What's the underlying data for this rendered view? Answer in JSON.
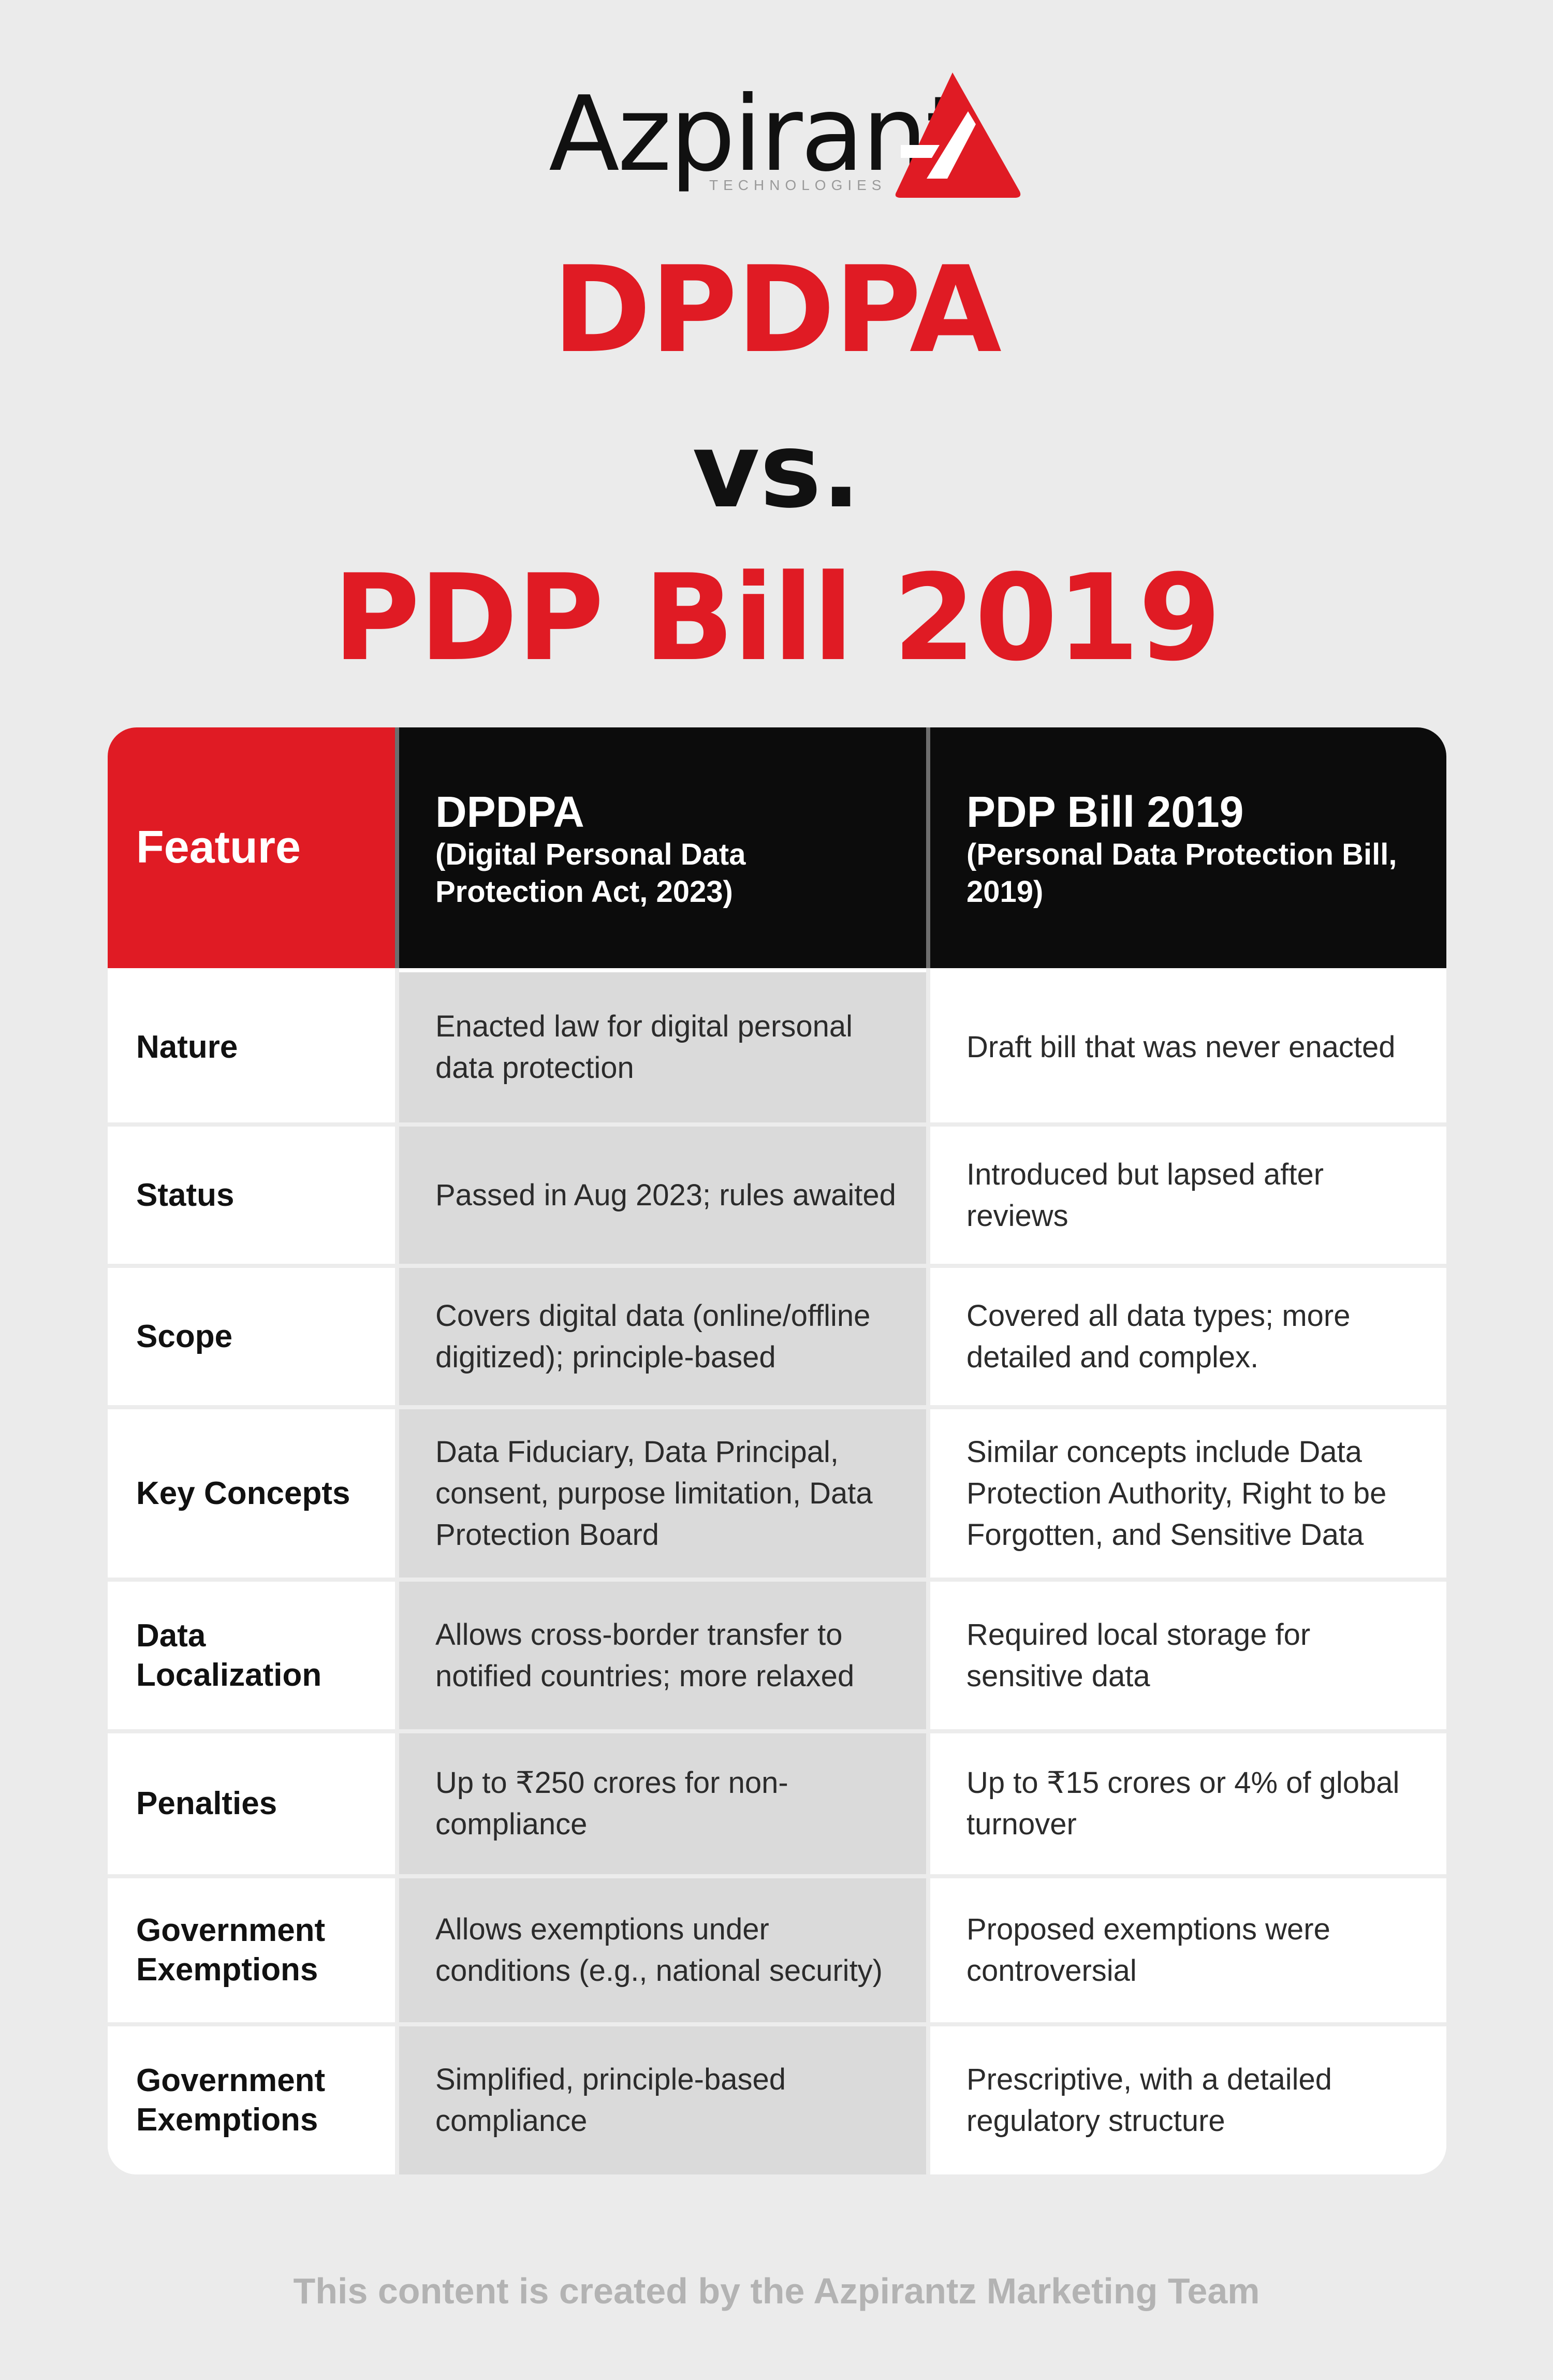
{
  "logo": {
    "wordmark": "Azpirant",
    "subtitle": "TECHNOLOGIES"
  },
  "title": {
    "line1": "DPDPA",
    "line2": "vs.",
    "line3": "PDP Bill 2019"
  },
  "colors": {
    "accent": "#e01b24",
    "header_dark": "#0c0c0c",
    "shade": "#dadada",
    "background": "#ebebeb"
  },
  "table": {
    "headers": {
      "feature": "Feature",
      "dpdpa_title": "DPDPA",
      "dpdpa_sub": "(Digital Personal Data Protection Act, 2023)",
      "pdp_title": "PDP Bill 2019",
      "pdp_sub": "(Personal Data Protection Bill, 2019)"
    },
    "rows": [
      {
        "feature": "Nature",
        "dpdpa": "Enacted law for digital personal data protection",
        "pdp": "Draft bill that was never enacted"
      },
      {
        "feature": "Status",
        "dpdpa": "Passed in Aug 2023; rules awaited",
        "pdp": "Introduced but lapsed after reviews"
      },
      {
        "feature": "Scope",
        "dpdpa": "Covers digital data (online/offline digitized); principle-based",
        "pdp": "Covered all data types; more detailed and complex."
      },
      {
        "feature": "Key Concepts",
        "dpdpa": "Data Fiduciary, Data Principal, consent, purpose limitation, Data Protection Board",
        "pdp": "Similar concepts include Data Protection Authority, Right to be Forgotten, and Sensitive Data"
      },
      {
        "feature": "Data Localization",
        "dpdpa": "Allows cross-border transfer to notified countries; more relaxed",
        "pdp": "Required local storage for sensitive data"
      },
      {
        "feature": "Penalties",
        "dpdpa": "Up to ₹250 crores for non-compliance",
        "pdp": "Up to ₹15 crores or 4% of global turnover"
      },
      {
        "feature": "Government Exemptions",
        "dpdpa": "Allows exemptions under conditions (e.g., national security)",
        "pdp": "Proposed exemptions were controversial"
      },
      {
        "feature": "Government Exemptions",
        "dpdpa": "Simplified, principle-based compliance",
        "pdp": "Prescriptive, with a detailed regulatory structure"
      }
    ]
  },
  "footer": {
    "text": "This content is created by the Azpirantz Marketing Team"
  }
}
